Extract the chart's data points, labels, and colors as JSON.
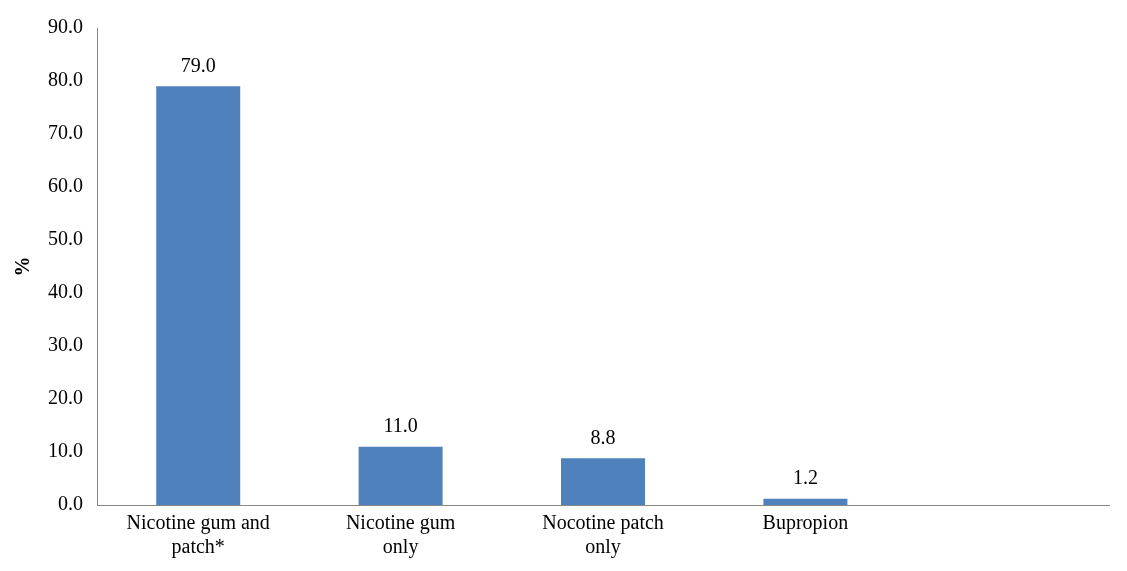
{
  "chart_data": {
    "type": "bar",
    "ylabel": "%",
    "categories": [
      "Nicotine gum and patch*",
      "Nicotine gum only",
      "Nocotine patch only",
      "Bupropion",
      null
    ],
    "values": [
      79.0,
      11.0,
      8.8,
      1.2,
      null
    ],
    "value_labels": [
      "79.0",
      "11.0",
      "8.8",
      "1.2",
      null
    ],
    "color": "#4f81bd",
    "ylim": [
      0,
      90
    ],
    "yticks": [
      {
        "value": 0,
        "label": "0.0"
      },
      {
        "value": 10,
        "label": "10.0"
      },
      {
        "value": 20,
        "label": "20.0"
      },
      {
        "value": 30,
        "label": "30.0"
      },
      {
        "value": 40,
        "label": "40.0"
      },
      {
        "value": 50,
        "label": "50.0"
      },
      {
        "value": 60,
        "label": "60.0"
      },
      {
        "value": 70,
        "label": "70.0"
      },
      {
        "value": 80,
        "label": "80.0"
      },
      {
        "value": 90,
        "label": "90.0"
      }
    ],
    "grid": false,
    "legend": false
  }
}
